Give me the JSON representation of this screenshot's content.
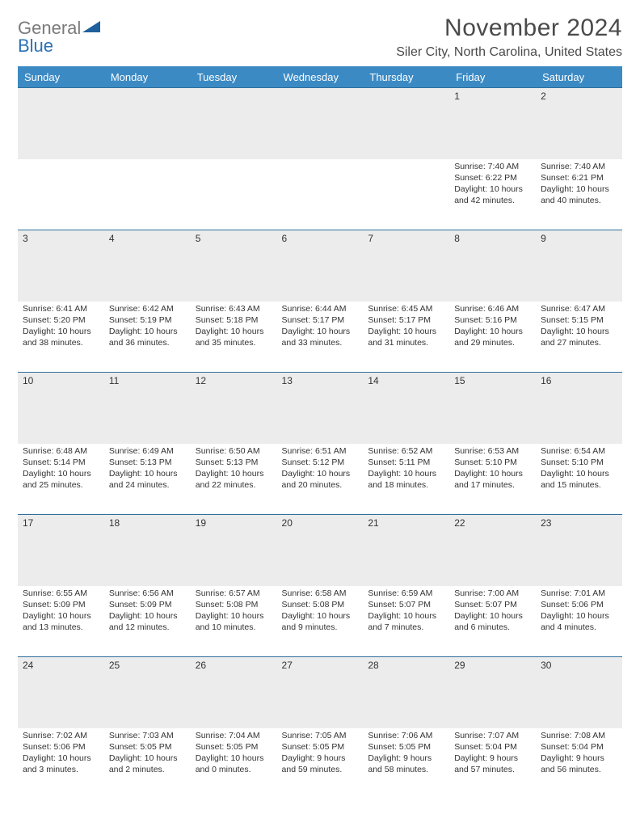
{
  "logo": {
    "word1": "General",
    "word2": "Blue",
    "tri_color": "#1e5f9c"
  },
  "title": "November 2024",
  "subtitle": "Siler City, North Carolina, United States",
  "colors": {
    "header_bg": "#3b8ac4",
    "header_text": "#ffffff",
    "grid_border": "#2f6f9e",
    "daynum_bg": "#ececec",
    "text": "#333333"
  },
  "day_headers": [
    "Sunday",
    "Monday",
    "Tuesday",
    "Wednesday",
    "Thursday",
    "Friday",
    "Saturday"
  ],
  "weeks": [
    [
      {
        "n": "",
        "lines": []
      },
      {
        "n": "",
        "lines": []
      },
      {
        "n": "",
        "lines": []
      },
      {
        "n": "",
        "lines": []
      },
      {
        "n": "",
        "lines": []
      },
      {
        "n": "1",
        "lines": [
          "Sunrise: 7:40 AM",
          "Sunset: 6:22 PM",
          "Daylight: 10 hours and 42 minutes."
        ]
      },
      {
        "n": "2",
        "lines": [
          "Sunrise: 7:40 AM",
          "Sunset: 6:21 PM",
          "Daylight: 10 hours and 40 minutes."
        ]
      }
    ],
    [
      {
        "n": "3",
        "lines": [
          "Sunrise: 6:41 AM",
          "Sunset: 5:20 PM",
          "Daylight: 10 hours and 38 minutes."
        ]
      },
      {
        "n": "4",
        "lines": [
          "Sunrise: 6:42 AM",
          "Sunset: 5:19 PM",
          "Daylight: 10 hours and 36 minutes."
        ]
      },
      {
        "n": "5",
        "lines": [
          "Sunrise: 6:43 AM",
          "Sunset: 5:18 PM",
          "Daylight: 10 hours and 35 minutes."
        ]
      },
      {
        "n": "6",
        "lines": [
          "Sunrise: 6:44 AM",
          "Sunset: 5:17 PM",
          "Daylight: 10 hours and 33 minutes."
        ]
      },
      {
        "n": "7",
        "lines": [
          "Sunrise: 6:45 AM",
          "Sunset: 5:17 PM",
          "Daylight: 10 hours and 31 minutes."
        ]
      },
      {
        "n": "8",
        "lines": [
          "Sunrise: 6:46 AM",
          "Sunset: 5:16 PM",
          "Daylight: 10 hours and 29 minutes."
        ]
      },
      {
        "n": "9",
        "lines": [
          "Sunrise: 6:47 AM",
          "Sunset: 5:15 PM",
          "Daylight: 10 hours and 27 minutes."
        ]
      }
    ],
    [
      {
        "n": "10",
        "lines": [
          "Sunrise: 6:48 AM",
          "Sunset: 5:14 PM",
          "Daylight: 10 hours and 25 minutes."
        ]
      },
      {
        "n": "11",
        "lines": [
          "Sunrise: 6:49 AM",
          "Sunset: 5:13 PM",
          "Daylight: 10 hours and 24 minutes."
        ]
      },
      {
        "n": "12",
        "lines": [
          "Sunrise: 6:50 AM",
          "Sunset: 5:13 PM",
          "Daylight: 10 hours and 22 minutes."
        ]
      },
      {
        "n": "13",
        "lines": [
          "Sunrise: 6:51 AM",
          "Sunset: 5:12 PM",
          "Daylight: 10 hours and 20 minutes."
        ]
      },
      {
        "n": "14",
        "lines": [
          "Sunrise: 6:52 AM",
          "Sunset: 5:11 PM",
          "Daylight: 10 hours and 18 minutes."
        ]
      },
      {
        "n": "15",
        "lines": [
          "Sunrise: 6:53 AM",
          "Sunset: 5:10 PM",
          "Daylight: 10 hours and 17 minutes."
        ]
      },
      {
        "n": "16",
        "lines": [
          "Sunrise: 6:54 AM",
          "Sunset: 5:10 PM",
          "Daylight: 10 hours and 15 minutes."
        ]
      }
    ],
    [
      {
        "n": "17",
        "lines": [
          "Sunrise: 6:55 AM",
          "Sunset: 5:09 PM",
          "Daylight: 10 hours and 13 minutes."
        ]
      },
      {
        "n": "18",
        "lines": [
          "Sunrise: 6:56 AM",
          "Sunset: 5:09 PM",
          "Daylight: 10 hours and 12 minutes."
        ]
      },
      {
        "n": "19",
        "lines": [
          "Sunrise: 6:57 AM",
          "Sunset: 5:08 PM",
          "Daylight: 10 hours and 10 minutes."
        ]
      },
      {
        "n": "20",
        "lines": [
          "Sunrise: 6:58 AM",
          "Sunset: 5:08 PM",
          "Daylight: 10 hours and 9 minutes."
        ]
      },
      {
        "n": "21",
        "lines": [
          "Sunrise: 6:59 AM",
          "Sunset: 5:07 PM",
          "Daylight: 10 hours and 7 minutes."
        ]
      },
      {
        "n": "22",
        "lines": [
          "Sunrise: 7:00 AM",
          "Sunset: 5:07 PM",
          "Daylight: 10 hours and 6 minutes."
        ]
      },
      {
        "n": "23",
        "lines": [
          "Sunrise: 7:01 AM",
          "Sunset: 5:06 PM",
          "Daylight: 10 hours and 4 minutes."
        ]
      }
    ],
    [
      {
        "n": "24",
        "lines": [
          "Sunrise: 7:02 AM",
          "Sunset: 5:06 PM",
          "Daylight: 10 hours and 3 minutes."
        ]
      },
      {
        "n": "25",
        "lines": [
          "Sunrise: 7:03 AM",
          "Sunset: 5:05 PM",
          "Daylight: 10 hours and 2 minutes."
        ]
      },
      {
        "n": "26",
        "lines": [
          "Sunrise: 7:04 AM",
          "Sunset: 5:05 PM",
          "Daylight: 10 hours and 0 minutes."
        ]
      },
      {
        "n": "27",
        "lines": [
          "Sunrise: 7:05 AM",
          "Sunset: 5:05 PM",
          "Daylight: 9 hours and 59 minutes."
        ]
      },
      {
        "n": "28",
        "lines": [
          "Sunrise: 7:06 AM",
          "Sunset: 5:05 PM",
          "Daylight: 9 hours and 58 minutes."
        ]
      },
      {
        "n": "29",
        "lines": [
          "Sunrise: 7:07 AM",
          "Sunset: 5:04 PM",
          "Daylight: 9 hours and 57 minutes."
        ]
      },
      {
        "n": "30",
        "lines": [
          "Sunrise: 7:08 AM",
          "Sunset: 5:04 PM",
          "Daylight: 9 hours and 56 minutes."
        ]
      }
    ]
  ]
}
